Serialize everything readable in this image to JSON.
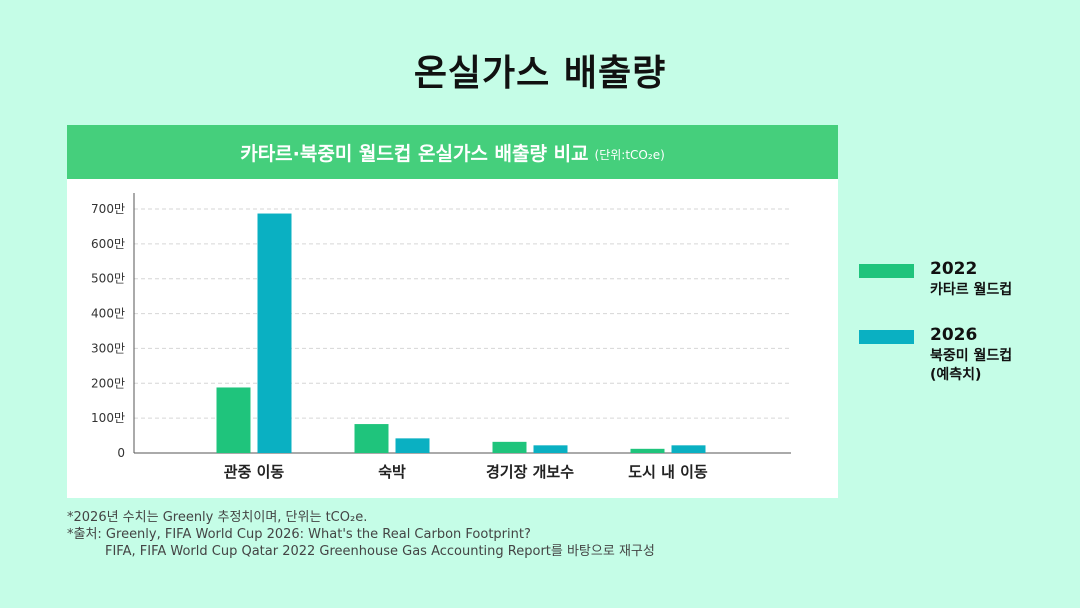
{
  "page_title": "온실가스 배출량",
  "chart_header": {
    "title": "카타르·북중미 월드컵 온실가스 배출량 비교",
    "unit": "(단위:tCO₂e)"
  },
  "legend": [
    {
      "year": "2022",
      "name": "카타르 월드컵",
      "color": "#1fc47c"
    },
    {
      "year": "2026",
      "name": "북중미 월드컵\n(예측치)",
      "color": "#0ab0c2"
    }
  ],
  "notes": [
    "*2026년 수치는 Greenly 추정치이며, 단위는 tCO₂e.",
    "*출처: Greenly, FIFA World Cup 2026: What's the Real Carbon Footprint?",
    "FIFA, FIFA World Cup Qatar 2022 Greenhouse Gas Accounting Report를 바탕으로 재구성"
  ],
  "chart_data": {
    "type": "bar",
    "title": "카타르·북중미 월드컵 온실가스 배출량 비교",
    "unit": "tCO₂e",
    "categories": [
      "관중 이동",
      "숙박",
      "경기장 개보수",
      "도시 내 이동"
    ],
    "series": [
      {
        "name": "2022 카타르 월드컵",
        "color": "#1fc47c",
        "values": [
          1880000,
          830000,
          320000,
          120000
        ]
      },
      {
        "name": "2026 북중미 월드컵 (예측치)",
        "color": "#0ab0c2",
        "values": [
          6870000,
          420000,
          220000,
          220000
        ]
      }
    ],
    "ylim": [
      0,
      7000000
    ],
    "yticks": [
      0,
      1000000,
      2000000,
      3000000,
      4000000,
      5000000,
      6000000,
      7000000
    ],
    "ytick_labels": [
      "0",
      "100만",
      "200만",
      "300만",
      "400만",
      "500만",
      "600만",
      "700만"
    ],
    "grid": true,
    "legend_position": "right"
  }
}
